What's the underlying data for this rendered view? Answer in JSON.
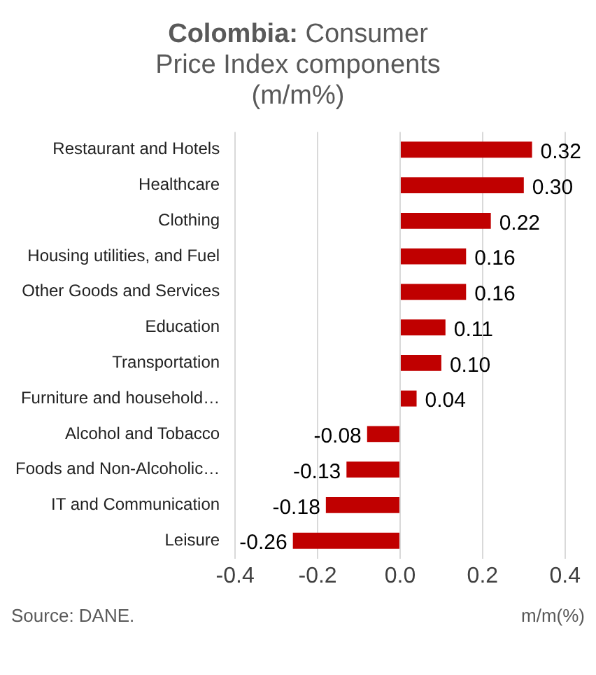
{
  "chart_data": {
    "type": "bar",
    "orientation": "horizontal",
    "title": "Colombia: Consumer Price Index components (m/m%)",
    "categories": [
      "Restaurant and Hotels",
      "Healthcare",
      "Clothing",
      "Housing utilities, and Fuel",
      "Other Goods and Services",
      "Education",
      "Transportation",
      "Furniture and household…",
      "Alcohol and Tobacco",
      "Foods and Non-Alcoholic…",
      "IT and Communication",
      "Leisure"
    ],
    "values": [
      0.32,
      0.3,
      0.22,
      0.16,
      0.16,
      0.11,
      0.1,
      0.04,
      -0.08,
      -0.13,
      -0.18,
      -0.26
    ],
    "color": "#c00000",
    "xlim": [
      -0.4,
      0.4
    ],
    "xticks": [
      {
        "value": -0.4,
        "label": "-0.4"
      },
      {
        "value": -0.2,
        "label": "-0.2"
      },
      {
        "value": 0,
        "label": "0.0"
      },
      {
        "value": 0.2,
        "label": "0.2"
      },
      {
        "value": 0.4,
        "label": "0.4"
      }
    ],
    "grid": "x",
    "legend": false,
    "value_labels": [
      "0.32",
      "0.30",
      "0.22",
      "0.16",
      "0.16",
      "0.11",
      "0.10",
      "0.04",
      "-0.08",
      "-0.13",
      "-0.18",
      "-0.26"
    ],
    "annotations": [
      "Source: DANE.",
      "m/m(%)"
    ]
  }
}
